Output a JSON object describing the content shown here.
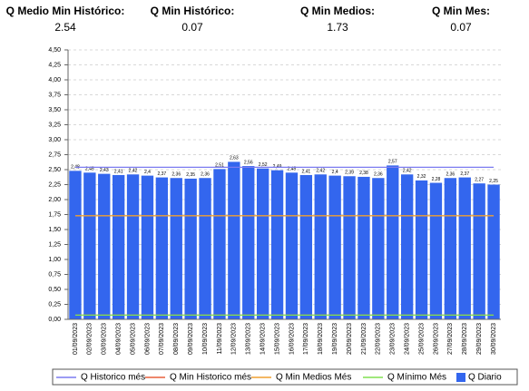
{
  "header": {
    "stats": [
      {
        "label": "Q Medio Min Histórico:",
        "value": 2.54
      },
      {
        "label": "Q Min Histórico:",
        "value": 0.07
      },
      {
        "label": "Q Min Medios:",
        "value": 1.73
      },
      {
        "label": "Q Min Mes:",
        "value": 0.07
      }
    ]
  },
  "chart_data": {
    "type": "bar",
    "categories": [
      "01/09/2023",
      "02/09/2023",
      "03/09/2023",
      "04/09/2023",
      "05/09/2023",
      "06/09/2023",
      "07/09/2023",
      "08/09/2023",
      "09/09/2023",
      "10/09/2023",
      "11/09/2023",
      "12/09/2023",
      "13/09/2023",
      "14/09/2023",
      "15/09/2023",
      "16/09/2023",
      "17/09/2023",
      "18/09/2023",
      "19/09/2023",
      "20/09/2023",
      "21/09/2023",
      "22/09/2023",
      "23/09/2023",
      "24/09/2023",
      "25/09/2023",
      "26/09/2023",
      "27/09/2023",
      "28/09/2023",
      "29/09/2023",
      "30/09/2023"
    ],
    "series": [
      {
        "name": "Q Historico més",
        "type": "line",
        "color": "#7b7bf0",
        "values": [
          2.54,
          2.54,
          2.54,
          2.54,
          2.54,
          2.54,
          2.54,
          2.54,
          2.54,
          2.54,
          2.54,
          2.54,
          2.54,
          2.54,
          2.54,
          2.54,
          2.54,
          2.54,
          2.54,
          2.54,
          2.54,
          2.54,
          2.54,
          2.54,
          2.54,
          2.54,
          2.54,
          2.54,
          2.54,
          2.54
        ]
      },
      {
        "name": "Q Min Historico més",
        "type": "line",
        "color": "#e8603c",
        "values": [
          0.07,
          0.07,
          0.07,
          0.07,
          0.07,
          0.07,
          0.07,
          0.07,
          0.07,
          0.07,
          0.07,
          0.07,
          0.07,
          0.07,
          0.07,
          0.07,
          0.07,
          0.07,
          0.07,
          0.07,
          0.07,
          0.07,
          0.07,
          0.07,
          0.07,
          0.07,
          0.07,
          0.07,
          0.07,
          0.07
        ]
      },
      {
        "name": "Q Min Medios Més",
        "type": "line",
        "color": "#f0a030",
        "values": [
          1.73,
          1.73,
          1.73,
          1.73,
          1.73,
          1.73,
          1.73,
          1.73,
          1.73,
          1.73,
          1.73,
          1.73,
          1.73,
          1.73,
          1.73,
          1.73,
          1.73,
          1.73,
          1.73,
          1.73,
          1.73,
          1.73,
          1.73,
          1.73,
          1.73,
          1.73,
          1.73,
          1.73,
          1.73,
          1.73
        ]
      },
      {
        "name": "Q Mínimo Més",
        "type": "line",
        "color": "#80e050",
        "values": [
          0.07,
          0.07,
          0.07,
          0.07,
          0.07,
          0.07,
          0.07,
          0.07,
          0.07,
          0.07,
          0.07,
          0.07,
          0.07,
          0.07,
          0.07,
          0.07,
          0.07,
          0.07,
          0.07,
          0.07,
          0.07,
          0.07,
          0.07,
          0.07,
          0.07,
          0.07,
          0.07,
          0.07,
          0.07,
          0.07
        ]
      },
      {
        "name": "Q Diario",
        "type": "bar",
        "color": "#3366ee",
        "values": [
          2.48,
          2.45,
          2.43,
          2.41,
          2.42,
          2.4,
          2.37,
          2.36,
          2.35,
          2.36,
          2.51,
          2.63,
          2.56,
          2.52,
          2.49,
          2.45,
          2.41,
          2.42,
          2.4,
          2.39,
          2.38,
          2.36,
          2.57,
          2.42,
          2.32,
          2.28,
          2.36,
          2.37,
          2.27,
          2.25
        ],
        "value_labels": [
          "2,48",
          "2,45",
          "2,43",
          "2,41",
          "2,42",
          "2,4",
          "2,37",
          "2,36",
          "2,35",
          "2,36",
          "2,51",
          "2,63",
          "2,56",
          "2,52",
          "2,49",
          "2,45",
          "2,41",
          "2,42",
          "2,4",
          "2,39",
          "2,38",
          "2,36",
          "2,57",
          "2,42",
          "2,32",
          "2,28",
          "2,36",
          "2,37",
          "2,27",
          "2,25"
        ]
      }
    ],
    "ylim": [
      0,
      4.5
    ],
    "yticks": [
      {
        "value": 0,
        "label": "0,00"
      },
      {
        "value": 0.25,
        "label": "0,25"
      },
      {
        "value": 0.5,
        "label": "0,50"
      },
      {
        "value": 0.75,
        "label": "0,75"
      },
      {
        "value": 1,
        "label": "1,00"
      },
      {
        "value": 1.25,
        "label": "1,25"
      },
      {
        "value": 1.5,
        "label": "1,50"
      },
      {
        "value": 1.75,
        "label": "1,75"
      },
      {
        "value": 2,
        "label": "2,00"
      },
      {
        "value": 2.25,
        "label": "2,25"
      },
      {
        "value": 2.5,
        "label": "2,50"
      },
      {
        "value": 2.75,
        "label": "2,75"
      },
      {
        "value": 3,
        "label": "3,00"
      },
      {
        "value": 3.25,
        "label": "3,25"
      },
      {
        "value": 3.5,
        "label": "3,50"
      },
      {
        "value": 3.75,
        "label": "3,75"
      },
      {
        "value": 4,
        "label": "4,00"
      },
      {
        "value": 4.25,
        "label": "4,25"
      },
      {
        "value": 4.5,
        "label": "4,50"
      }
    ],
    "grid": true
  }
}
